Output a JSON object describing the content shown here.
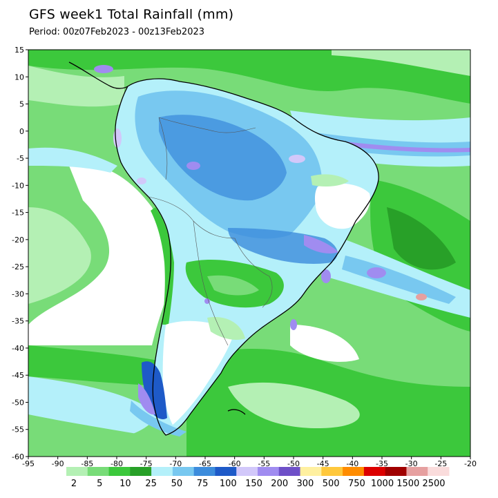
{
  "title": "GFS week1 Total Rainfall (mm)",
  "period": "Period: 00z07Feb2023 - 00z13Feb2023",
  "map": {
    "lon_range": [
      -95,
      -20
    ],
    "lat_range": [
      -60,
      15
    ],
    "x_ticks": [
      "-95",
      "-90",
      "-85",
      "-80",
      "-75",
      "-70",
      "-65",
      "-60",
      "-55",
      "-50",
      "-45",
      "-40",
      "-35",
      "-30",
      "-25",
      "-20"
    ],
    "y_ticks": [
      "15",
      "10",
      "5",
      "0",
      "-5",
      "-10",
      "-15",
      "-20",
      "-25",
      "-30",
      "-35",
      "-40",
      "-45",
      "-50",
      "-55",
      "-60"
    ]
  },
  "colorbar": {
    "labels": [
      "2",
      "5",
      "10",
      "25",
      "50",
      "75",
      "100",
      "150",
      "200",
      "300",
      "500",
      "750",
      "1000",
      "1500",
      "2500"
    ],
    "colors": [
      "#b4f0b4",
      "#78dc78",
      "#3cc83c",
      "#28a028",
      "#b4f0fa",
      "#78c8f0",
      "#3c8cdc",
      "#1e5ac8",
      "#d2c8fa",
      "#a08cf0",
      "#6e50c8",
      "#fff0a0",
      "#ffc83c",
      "#ff8c00",
      "#dc0000",
      "#a00000",
      "#e6a0a0",
      "#fadcdc"
    ]
  },
  "colors": {
    "light_green": "#b4f0b4",
    "mid_green": "#78dc78",
    "green": "#3cc83c",
    "dark_green": "#28a028",
    "cyan": "#b4f0fa",
    "light_blue": "#78c8f0",
    "blue": "#3c8cdc",
    "purple": "#a08cf0"
  }
}
